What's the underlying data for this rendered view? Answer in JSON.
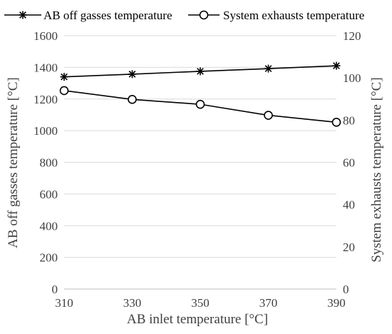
{
  "chart_data": {
    "type": "line",
    "x": [
      310,
      330,
      350,
      370,
      390
    ],
    "xlabel": "AB inlet temperature [°C]",
    "ylabel_left": "AB off gasses temperature [°C]",
    "ylabel_right": "System exhausts temperature [°C]",
    "xlim": [
      310,
      390
    ],
    "ylim_left": [
      0,
      1600
    ],
    "ylim_right": [
      0,
      120
    ],
    "x_ticks": [
      310,
      330,
      350,
      370,
      390
    ],
    "y_ticks_left": [
      0,
      200,
      400,
      600,
      800,
      1000,
      1200,
      1400,
      1600
    ],
    "y_ticks_right": [
      0,
      20,
      40,
      60,
      80,
      100,
      120
    ],
    "grid": "horizontal",
    "legend_position": "top",
    "series": [
      {
        "name": "AB off gasses temperature",
        "axis": "left",
        "marker": "asterisk",
        "values": [
          1340,
          1357,
          1375,
          1392,
          1410
        ]
      },
      {
        "name": "System exhausts temperature",
        "axis": "right",
        "marker": "circle",
        "values": [
          94,
          89.8,
          87.5,
          82.3,
          79
        ]
      }
    ],
    "colors": {
      "series": "#000000",
      "grid": "#d9d9d9",
      "axis": "#bfbfbf",
      "text": "#404040"
    }
  }
}
